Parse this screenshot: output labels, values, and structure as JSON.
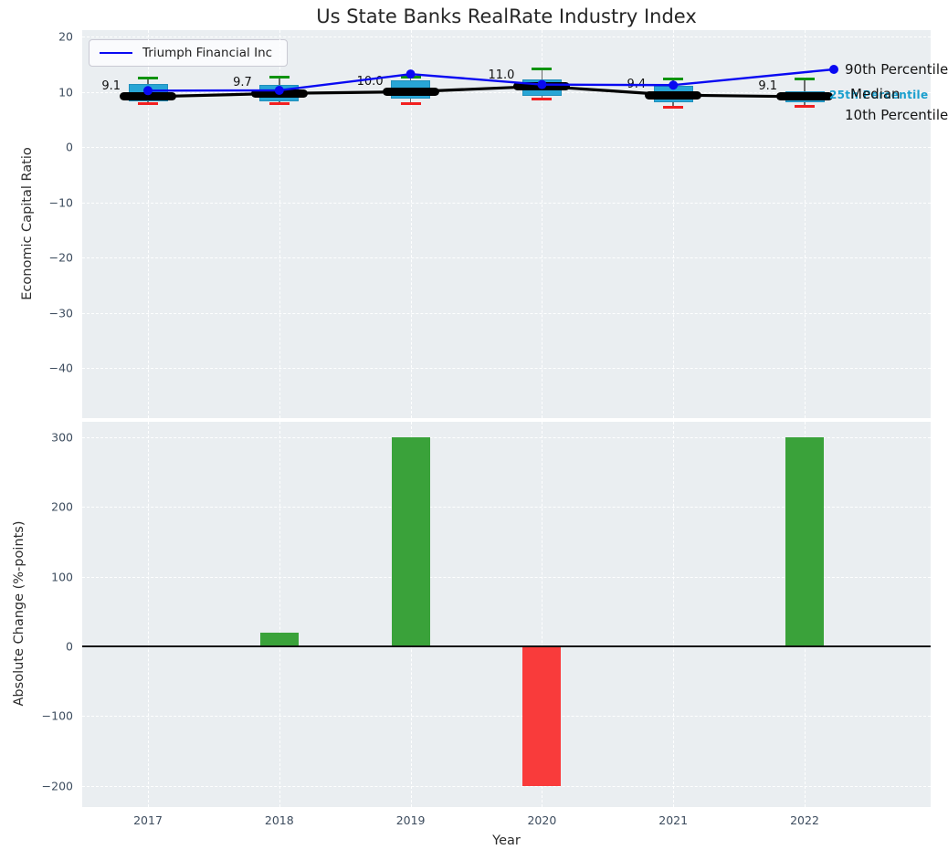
{
  "title": "Us State Banks RealRate Industry Index",
  "legend": {
    "series_label": "Triumph Financial Inc"
  },
  "years": [
    "2017",
    "2018",
    "2019",
    "2020",
    "2021",
    "2022"
  ],
  "top_chart": {
    "ylabel": "Economic Capital Ratio",
    "ytick_labels": [
      "20",
      "10",
      "0",
      "−10",
      "−20",
      "−30",
      "−40"
    ],
    "right_labels": {
      "p90": "90th Percentile",
      "median": "Median",
      "p25": "25th Percentile",
      "p10": "10th Percentile"
    }
  },
  "bottom_chart": {
    "ylabel": "Absolute Change (%-points)",
    "xlabel": "Year",
    "ytick_labels": [
      "300",
      "200",
      "100",
      "0",
      "−100",
      "−200"
    ]
  },
  "colors": {
    "plot_bg": "#eaeef1",
    "box_fill": "#28a5d5",
    "cap_top_green": "#0e930e",
    "cap_bottom_red": "#f22020",
    "median_black": "#000000",
    "triumph_blue": "#0909f2",
    "bar_positive_green": "#3aa23a",
    "bar_negative_red": "#f93b3b",
    "cyan_label": "#1a9fce",
    "tick_text": "#3d4c5e"
  },
  "chart_data": [
    {
      "type": "boxplot+line",
      "title": "Us State Banks RealRate Industry Index",
      "ylabel": "Economic Capital Ratio",
      "categories": [
        "2017",
        "2018",
        "2019",
        "2020",
        "2021",
        "2022"
      ],
      "ylim": [
        -49,
        21.2
      ],
      "yticks": [
        20,
        10,
        0,
        -10,
        -20,
        -30,
        -40
      ],
      "grid": true,
      "legend_position": "upper left",
      "series": [
        {
          "name": "Triumph Financial Inc",
          "type": "line",
          "color": "#0909f2",
          "values": [
            10.2,
            10.25,
            13.2,
            11.3,
            11.2,
            14.05
          ]
        },
        {
          "name": "Median",
          "type": "line",
          "color": "#000000",
          "values": [
            9.1,
            9.7,
            10.0,
            11.0,
            9.4,
            9.1
          ]
        }
      ],
      "box": {
        "p90": [
          12.4,
          12.6,
          12.6,
          14.2,
          12.3,
          12.3
        ],
        "q3": [
          11.4,
          11.2,
          12.0,
          12.2,
          11.1,
          10.1
        ],
        "median": [
          9.1,
          9.7,
          10.0,
          11.0,
          9.4,
          9.1
        ],
        "q1": [
          8.3,
          8.3,
          8.7,
          9.3,
          8.1,
          8.15
        ],
        "p10": [
          7.9,
          7.9,
          7.9,
          8.6,
          7.2,
          7.3
        ]
      },
      "annotations": [
        "9.1",
        "9.7",
        "10.0",
        "11.0",
        "9.4",
        "9.1"
      ]
    },
    {
      "type": "bar",
      "categories": [
        "2017",
        "2018",
        "2019",
        "2020",
        "2021",
        "2022"
      ],
      "values": [
        0,
        20,
        300,
        -200,
        0,
        300
      ],
      "ylabel": "Absolute Change (%-points)",
      "xlabel": "Year",
      "ylim": [
        -231,
        324
      ],
      "yticks": [
        300,
        200,
        100,
        0,
        -100,
        -200
      ],
      "grid": true,
      "positive_color": "#3aa23a",
      "negative_color": "#f93b3b"
    }
  ]
}
